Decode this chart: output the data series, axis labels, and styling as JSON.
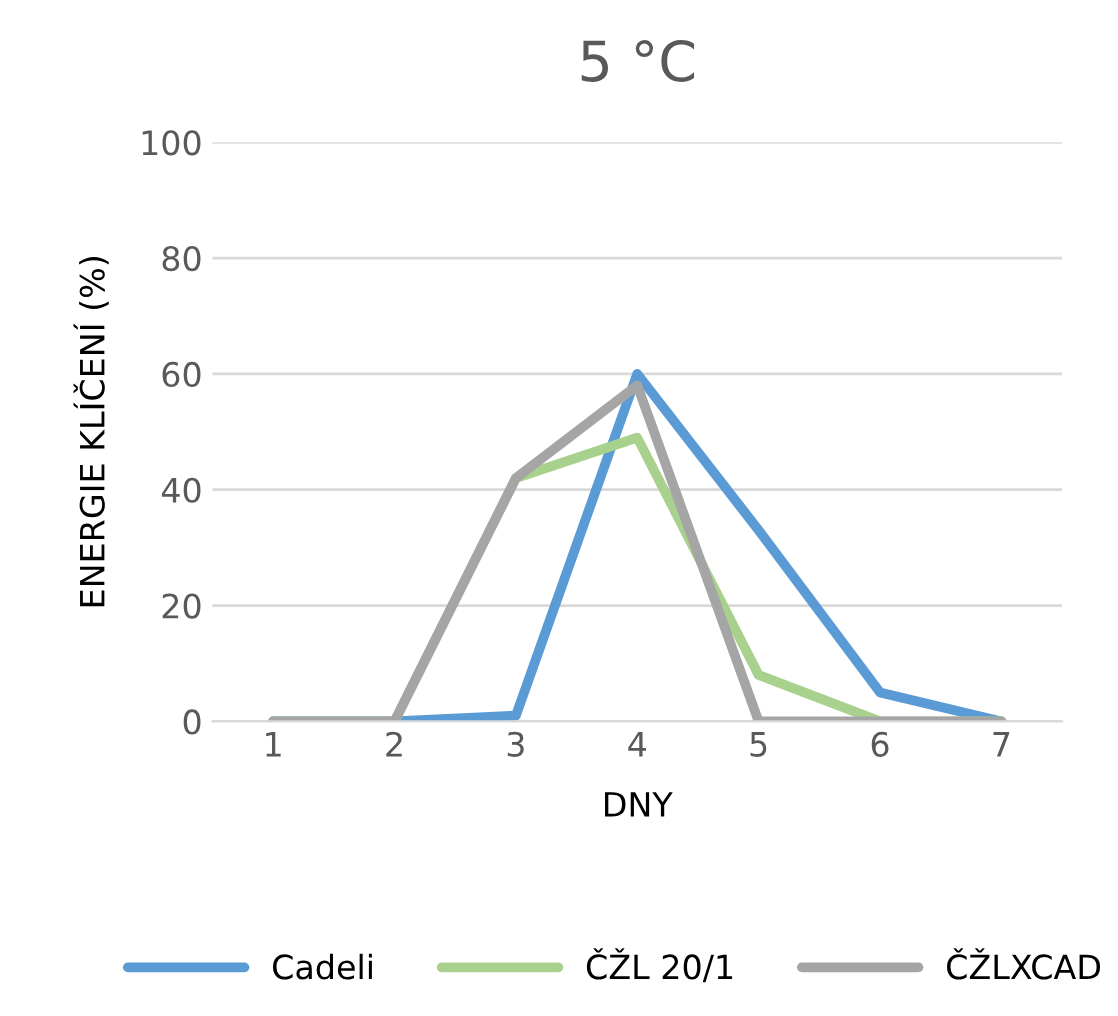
{
  "chart_data": {
    "type": "line",
    "title": "5 °C",
    "xlabel": "DNY",
    "ylabel": "ENERGIE KLÍČENÍ (%)",
    "categories": [
      "1",
      "2",
      "3",
      "4",
      "5",
      "6",
      "7"
    ],
    "series": [
      {
        "name": "Cadeli",
        "color": "#5b9bd5",
        "values": [
          0,
          0,
          1,
          60,
          33,
          5,
          0
        ]
      },
      {
        "name": "ČŽL 20/1",
        "color": "#a9d18e",
        "values": [
          0,
          0,
          42,
          49,
          8,
          0,
          0
        ]
      },
      {
        "name": "ČŽLXCAD",
        "color": "#a5a5a5",
        "values": [
          0,
          0,
          42,
          58,
          0,
          0,
          0
        ]
      }
    ],
    "ylim": [
      0,
      100
    ],
    "yticks": [
      0,
      20,
      40,
      60,
      80,
      100
    ],
    "grid": "y",
    "legend": "bottom",
    "marker": "none",
    "line_style": "solid"
  }
}
